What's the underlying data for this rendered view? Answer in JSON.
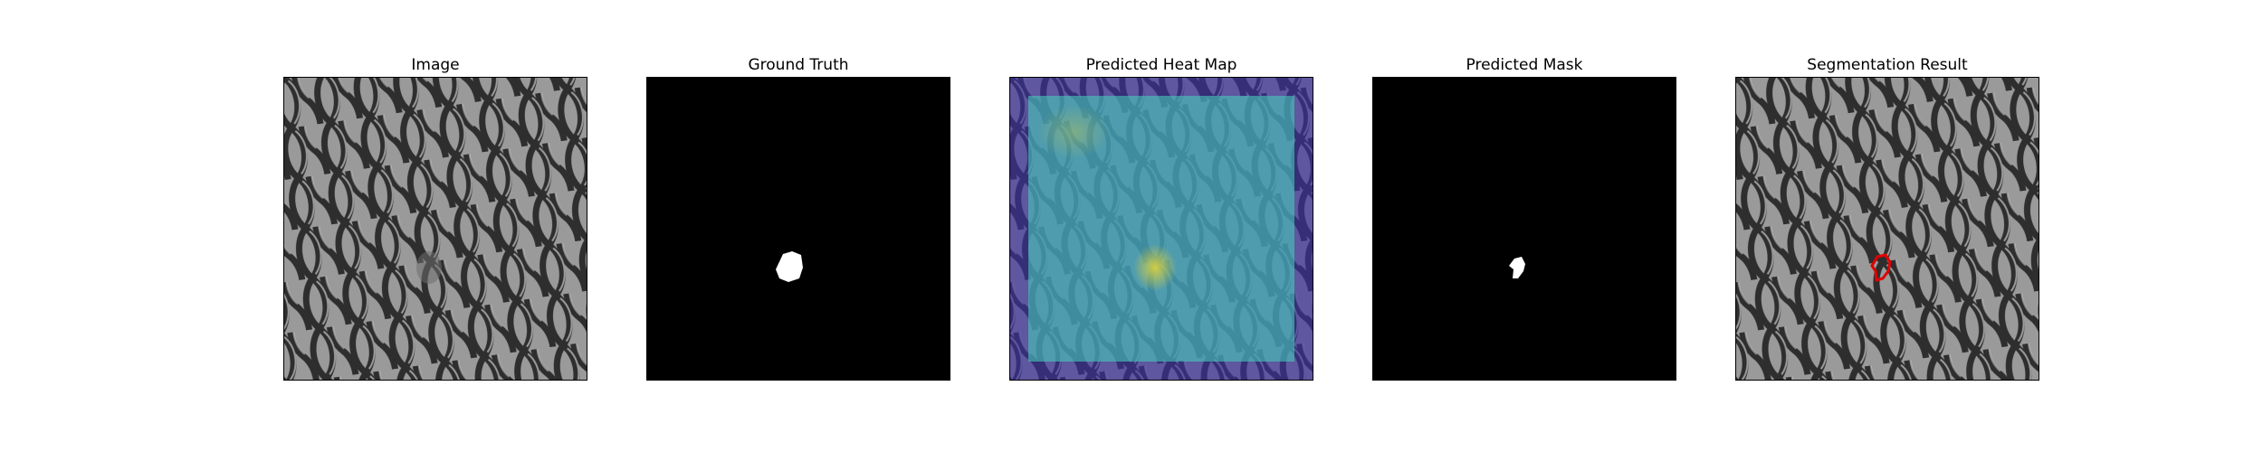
{
  "panels": [
    {
      "title": "Image",
      "kind": "image"
    },
    {
      "title": "Ground Truth",
      "kind": "mask-gt"
    },
    {
      "title": "Predicted Heat Map",
      "kind": "heatmap"
    },
    {
      "title": "Predicted Mask",
      "kind": "mask-pred"
    },
    {
      "title": "Segmentation Result",
      "kind": "segmentation"
    }
  ],
  "colors": {
    "mesh_base": "#9a9a9a",
    "mesh_wire": "#2e2e2e",
    "mesh_highlight": "#c8c8c8",
    "mask_background": "#000000",
    "mask_foreground": "#ffffff",
    "heat_low": "#3b2fa3",
    "heat_mid": "#46c7b8",
    "heat_high": "#d8d040",
    "contour": "#e00000"
  }
}
